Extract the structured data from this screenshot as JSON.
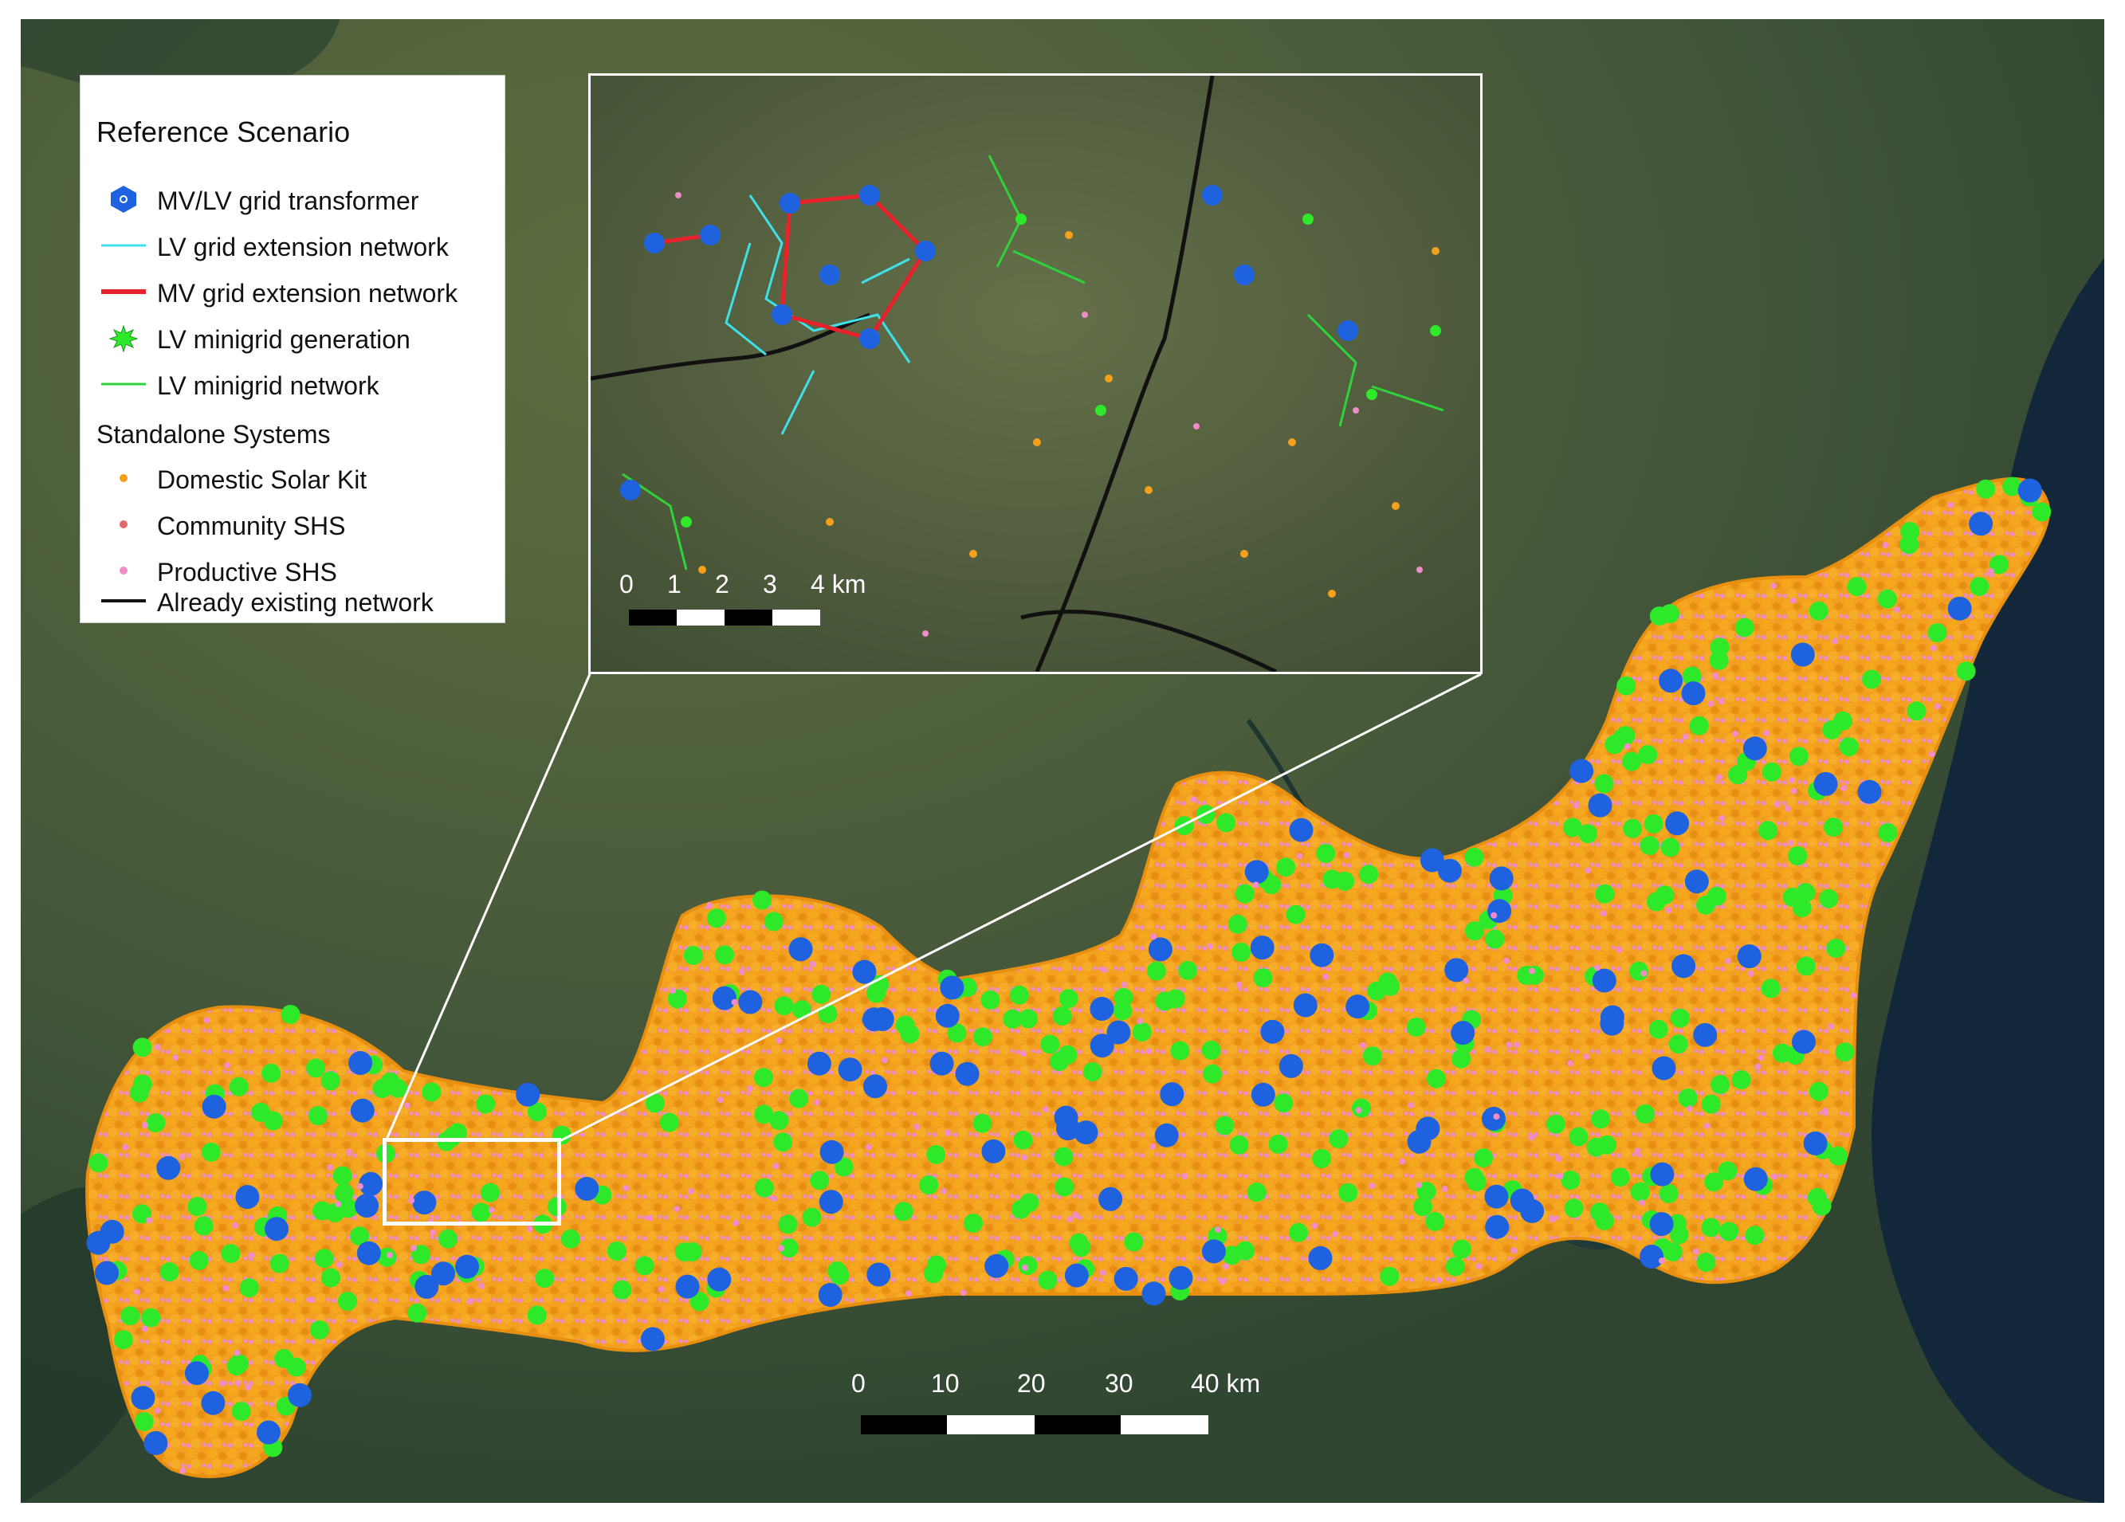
{
  "legend": {
    "title": "Reference Scenario",
    "items": [
      {
        "label": "MV/LV grid transformer",
        "symbol": "blue-hexagon",
        "color": "#1f62e0"
      },
      {
        "label": "LV grid extension network",
        "symbol": "line",
        "color": "#3fe0e8"
      },
      {
        "label": "MV grid extension network",
        "symbol": "thick-line",
        "color": "#e8222a"
      },
      {
        "label": "LV minigrid generation",
        "symbol": "green-star",
        "color": "#2ee82a"
      },
      {
        "label": "LV minigrid network",
        "symbol": "line",
        "color": "#2fd23a"
      }
    ],
    "standalone_title": "Standalone Systems",
    "standalone_items": [
      {
        "label": "Domestic Solar Kit",
        "symbol": "dot",
        "color": "#f5a01a"
      },
      {
        "label": "Community SHS",
        "symbol": "dot",
        "color": "#e06a6a"
      },
      {
        "label": "Productive SHS",
        "symbol": "dot",
        "color": "#f08cc8"
      },
      {
        "label": "Already existing network",
        "symbol": "line",
        "color": "#111111"
      }
    ]
  },
  "inset_scale": {
    "labels": [
      "0",
      "1",
      "2",
      "3",
      "4 km"
    ]
  },
  "main_scale": {
    "labels": [
      "0",
      "10",
      "20",
      "30",
      "40 km"
    ]
  },
  "colors": {
    "transformer": "#1f62e0",
    "lv_grid": "#3fe0e8",
    "mv_grid": "#e8222a",
    "minigrid_generation": "#2ee82a",
    "minigrid_network": "#2fd23a",
    "domestic_solar_kit": "#f5a01a",
    "community_shs": "#e06a6a",
    "productive_shs": "#f08cc8",
    "existing_network": "#111111",
    "lake": "#12283a"
  }
}
